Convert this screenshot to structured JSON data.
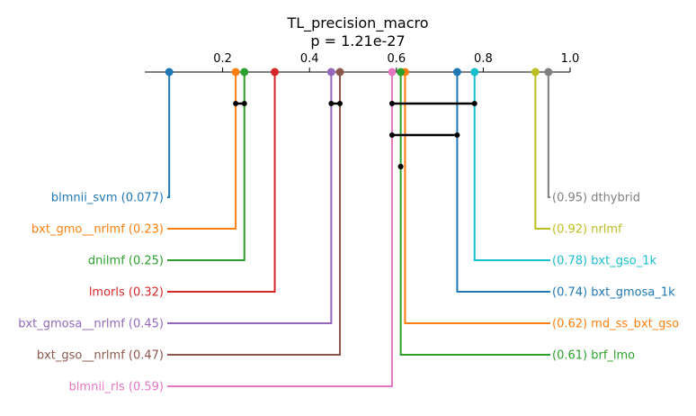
{
  "chart_data": {
    "type": "critical-difference",
    "title": "TL_precision_macro",
    "subtitle": "p = 1.21e-27",
    "axis": {
      "min": 0.0,
      "max": 1.0,
      "ticks": [
        "0.2",
        "0.4",
        "0.6",
        "0.8",
        "1.0"
      ]
    },
    "left_methods": [
      {
        "name": "blmnii_svm",
        "value": 0.077,
        "label": "blmnii_svm (0.077)",
        "color": "#1f77b4"
      },
      {
        "name": "bxt_gmo__nrlmf",
        "value": 0.23,
        "label": "bxt_gmo__nrlmf (0.23)",
        "color": "#ff7f0e"
      },
      {
        "name": "dnilmf",
        "value": 0.25,
        "label": "dnilmf (0.25)",
        "color": "#2ca02c"
      },
      {
        "name": "lmorls",
        "value": 0.32,
        "label": "lmorls (0.32)",
        "color": "#d62728"
      },
      {
        "name": "bxt_gmosa__nrlmf",
        "value": 0.45,
        "label": "bxt_gmosa__nrlmf (0.45)",
        "color": "#9467bd"
      },
      {
        "name": "bxt_gso__nrlmf",
        "value": 0.47,
        "label": "bxt_gso__nrlmf (0.47)",
        "color": "#8c564b"
      },
      {
        "name": "blmnii_rls",
        "value": 0.59,
        "label": "blmnii_rls (0.59)",
        "color": "#e377c2"
      }
    ],
    "right_methods": [
      {
        "name": "dthybrid",
        "value": 0.95,
        "label": "(0.95) dthybrid",
        "color": "#7f7f7f"
      },
      {
        "name": "nrlmf",
        "value": 0.92,
        "label": "(0.92) nrlmf",
        "color": "#bcbd22"
      },
      {
        "name": "bxt_gso_1k",
        "value": 0.78,
        "label": "(0.78) bxt_gso_1k",
        "color": "#17becf"
      },
      {
        "name": "bxt_gmosa_1k",
        "value": 0.74,
        "label": "(0.74) bxt_gmosa_1k",
        "color": "#1f77b4"
      },
      {
        "name": "md_ss_bxt_gso",
        "value": 0.62,
        "label": "(0.62) md_ss_bxt_gso",
        "color": "#ff7f0e"
      },
      {
        "name": "brf_lmo",
        "value": 0.61,
        "label": "(0.61) brf_lmo",
        "color": "#2ca02c"
      }
    ],
    "cliques": [
      [
        0.23,
        0.25
      ],
      [
        0.45,
        0.47
      ],
      [
        0.59,
        0.78
      ],
      [
        0.59,
        0.74
      ],
      [
        0.61,
        0.61
      ]
    ]
  }
}
